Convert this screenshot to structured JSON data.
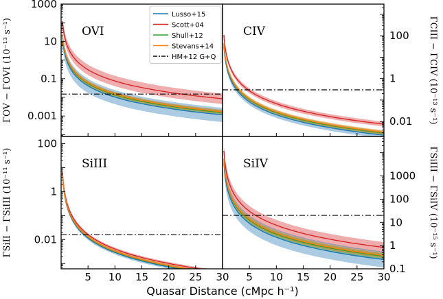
{
  "figure": {
    "xlabel": "Quasar Distance (cMpc h⁻¹)",
    "legend": {
      "placement": "top-center",
      "entries": [
        {
          "name": "Lusso+15",
          "color": "#1f77b4",
          "style": "solid"
        },
        {
          "name": "Scott+04",
          "color": "#d62728",
          "style": "solid"
        },
        {
          "name": "Shull+12",
          "color": "#2ca02c",
          "style": "solid"
        },
        {
          "name": "Stevans+14",
          "color": "#ff7f0e",
          "style": "solid"
        },
        {
          "name": "HM+12 G+Q",
          "color": "#000000",
          "style": "dashdot"
        }
      ]
    }
  },
  "chart_data": [
    {
      "type": "line",
      "panel": "top-left",
      "annotation": "OVI",
      "ylabel": "ΓOV − ΓOVI (10⁻¹³ s⁻¹)",
      "yaxis_side": "left",
      "xlim": [
        0,
        30
      ],
      "ylim": [
        8e-05,
        1000
      ],
      "yscale": "log",
      "x_ticks": [
        "5",
        "10",
        "15",
        "20",
        "25",
        "30"
      ],
      "show_x_tick_labels": false,
      "y_ticks": [
        {
          "value": 1000,
          "label": "1000"
        },
        {
          "value": 10,
          "label": "10"
        },
        {
          "value": 0.1,
          "label": "0.1"
        },
        {
          "value": 0.001,
          "label": "0.001"
        }
      ],
      "hline": 0.015,
      "series": [
        {
          "name": "Scott+04",
          "ref": 0.3,
          "band": 1.9
        },
        {
          "name": "Lusso+15",
          "ref": 0.041,
          "band": 2.4
        },
        {
          "name": "Shull+12",
          "ref": 0.055,
          "band": 1.35
        },
        {
          "name": "Stevans+14",
          "ref": 0.06,
          "band": 1.3
        }
      ]
    },
    {
      "type": "line",
      "panel": "top-right",
      "annotation": "CIV",
      "ylabel": "ΓCIII − ΓCIV (10⁻¹³ s⁻¹)",
      "yaxis_side": "right",
      "xlim": [
        0,
        30
      ],
      "ylim": [
        0.002,
        3000
      ],
      "yscale": "log",
      "x_ticks": [
        "5",
        "10",
        "15",
        "20",
        "25",
        "30"
      ],
      "show_x_tick_labels": false,
      "y_ticks": [
        {
          "value": 100,
          "label": "100"
        },
        {
          "value": 1,
          "label": "1"
        },
        {
          "value": 0.01,
          "label": "0.01"
        }
      ],
      "hline": 0.3,
      "series": [
        {
          "name": "Scott+04",
          "ref": 0.27,
          "band": 1.3
        },
        {
          "name": "Lusso+15",
          "ref": 0.082,
          "band": 1.4
        },
        {
          "name": "Shull+12",
          "ref": 0.105,
          "band": 1.25
        },
        {
          "name": "Stevans+14",
          "ref": 0.112,
          "band": 1.25
        }
      ]
    },
    {
      "type": "line",
      "panel": "bottom-left",
      "annotation": "SiIII",
      "ylabel": "ΓSiII − ΓSiIII (10⁻¹¹ s⁻¹)",
      "yaxis_side": "left",
      "xlim": [
        0,
        30
      ],
      "ylim": [
        0.0006,
        200
      ],
      "yscale": "log",
      "x_ticks": [
        "5",
        "10",
        "15",
        "20",
        "25",
        "30"
      ],
      "show_x_tick_labels": true,
      "y_ticks": [
        {
          "value": 100,
          "label": "100"
        },
        {
          "value": 1,
          "label": "1"
        },
        {
          "value": 0.01,
          "label": "0.01"
        }
      ],
      "hline": 0.016,
      "series": [
        {
          "name": "Scott+04",
          "ref": 0.016,
          "band": 1.15
        },
        {
          "name": "Lusso+15",
          "ref": 0.0115,
          "band": 1.2
        },
        {
          "name": "Shull+12",
          "ref": 0.0125,
          "band": 1.15
        },
        {
          "name": "Stevans+14",
          "ref": 0.013,
          "band": 1.15
        }
      ]
    },
    {
      "type": "line",
      "panel": "bottom-right",
      "annotation": "SiIV",
      "ylabel": "ΓSiIII − ΓSiIV (10⁻¹⁵ s⁻¹)",
      "yaxis_side": "right",
      "xlim": [
        0,
        30
      ],
      "ylim": [
        0.1,
        50000
      ],
      "yscale": "log",
      "x_ticks": [
        "5",
        "10",
        "15",
        "20",
        "25",
        "30"
      ],
      "show_x_tick_labels": true,
      "y_ticks": [
        {
          "value": 1000,
          "label": "1000"
        },
        {
          "value": 100,
          "label": "100"
        },
        {
          "value": 10,
          "label": "10"
        },
        {
          "value": 1,
          "label": "1"
        },
        {
          "value": 0.1,
          "label": "0.1"
        }
      ],
      "hline": 20,
      "series": [
        {
          "name": "Scott+04",
          "ref": 30,
          "band": 1.7
        },
        {
          "name": "Lusso+15",
          "ref": 9,
          "band": 2.2
        },
        {
          "name": "Shull+12",
          "ref": 12.5,
          "band": 1.35
        },
        {
          "name": "Stevans+14",
          "ref": 13.5,
          "band": 1.3
        }
      ]
    }
  ]
}
